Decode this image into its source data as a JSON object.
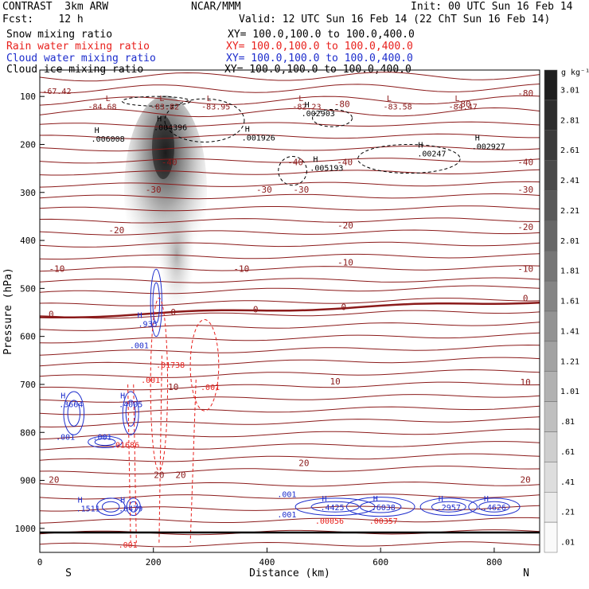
{
  "header": {
    "title_left": "CONTRAST  3km ARW",
    "forecast": "Fcst:    12 h",
    "center": "NCAR/MMM",
    "init": "Init: 00 UTC Sun 16 Feb 14",
    "valid": "Valid: 12 UTC Sun 16 Feb 14 (22 ChT Sun 16 Feb 14)"
  },
  "legend": [
    {
      "name": "Snow mixing ratio",
      "xy": "",
      "color": "#000000"
    },
    {
      "name": "Rain water mixing ratio",
      "xy": "XY= 100.0,100.0 to 100.0,400.0",
      "color": "#e8201c"
    },
    {
      "name": "Cloud water mixing ratio",
      "xy": "XY= 100.0,100.0 to 100.0,400.0",
      "color": "#1c2ccc"
    },
    {
      "name": "Cloud ice mixing ratio",
      "xy": "XY= 100.0,100.0 to 100.0,400.0",
      "color": "#000000"
    }
  ],
  "snow_xy": "XY= 100.0,100.0 to 100.0,400.0",
  "chart_data": {
    "type": "cross-section",
    "xlabel": "Distance (km)",
    "ylabel": "Pressure (hPa)",
    "xlim": [
      0,
      880
    ],
    "ylim": [
      1050,
      45
    ],
    "xticks": [
      "0",
      "200",
      "400",
      "600",
      "800"
    ],
    "yticks": [
      "100",
      "200",
      "300",
      "400",
      "500",
      "600",
      "700",
      "800",
      "900",
      "1000"
    ],
    "xtick_values": [
      0,
      200,
      400,
      600,
      800
    ],
    "ytick_values": [
      100,
      200,
      300,
      400,
      500,
      600,
      700,
      800,
      900,
      1000
    ],
    "left_end": "S",
    "right_end": "N",
    "colorbar": {
      "unit": "g kg⁻¹",
      "labels": [
        "3.01",
        "2.81",
        "2.61",
        "2.41",
        "2.21",
        "2.01",
        "1.81",
        "1.61",
        "1.41",
        "1.21",
        "1.01",
        ".81",
        ".61",
        ".41",
        ".21",
        ".01"
      ]
    },
    "temperature_labels": [
      {
        "text": "-80",
        "x": 532,
        "p": 122
      },
      {
        "text": "-80",
        "x": 745,
        "p": 122
      },
      {
        "text": "-80",
        "x": 855,
        "p": 100
      },
      {
        "text": "-40",
        "x": 228,
        "p": 243
      },
      {
        "text": "-40",
        "x": 450,
        "p": 243
      },
      {
        "text": "-40",
        "x": 537,
        "p": 243
      },
      {
        "text": "-40",
        "x": 855,
        "p": 243
      },
      {
        "text": "-30",
        "x": 200,
        "p": 300
      },
      {
        "text": "-30",
        "x": 395,
        "p": 300
      },
      {
        "text": "-30",
        "x": 460,
        "p": 300
      },
      {
        "text": "-30",
        "x": 855,
        "p": 300
      },
      {
        "text": "-20",
        "x": 135,
        "p": 385
      },
      {
        "text": "-20",
        "x": 538,
        "p": 375
      },
      {
        "text": "-20",
        "x": 855,
        "p": 378
      },
      {
        "text": "-10",
        "x": 30,
        "p": 465
      },
      {
        "text": "-10",
        "x": 355,
        "p": 465
      },
      {
        "text": "-10",
        "x": 538,
        "p": 452
      },
      {
        "text": "-10",
        "x": 855,
        "p": 465
      },
      {
        "text": "0",
        "x": 20,
        "p": 560
      },
      {
        "text": "0",
        "x": 235,
        "p": 556
      },
      {
        "text": "0",
        "x": 380,
        "p": 550
      },
      {
        "text": "0",
        "x": 535,
        "p": 545
      },
      {
        "text": "0",
        "x": 855,
        "p": 527
      },
      {
        "text": "10",
        "x": 235,
        "p": 712
      },
      {
        "text": "10",
        "x": 520,
        "p": 700
      },
      {
        "text": "10",
        "x": 855,
        "p": 702
      },
      {
        "text": "20",
        "x": 25,
        "p": 905
      },
      {
        "text": "20",
        "x": 210,
        "p": 895
      },
      {
        "text": "20",
        "x": 248,
        "p": 895
      },
      {
        "text": "20",
        "x": 465,
        "p": 870
      },
      {
        "text": "20",
        "x": 855,
        "p": 905
      }
    ],
    "low_labels": [
      {
        "text": "-67.42",
        "x": 30,
        "p": 95,
        "hx": 0,
        "hp": 0
      },
      {
        "text": "-84.68",
        "x": 110,
        "p": 127,
        "hx": 120,
        "hp": 110
      },
      {
        "text": "-83.82",
        "x": 220,
        "p": 127,
        "hx": 215,
        "hp": 110
      },
      {
        "text": "-83.95",
        "x": 310,
        "p": 127,
        "hx": 298,
        "hp": 110
      },
      {
        "text": "-82.23",
        "x": 470,
        "p": 127,
        "hx": 460,
        "hp": 110
      },
      {
        "text": "-83.58",
        "x": 630,
        "p": 127,
        "hx": 615,
        "hp": 110
      },
      {
        "text": "-84.47",
        "x": 745,
        "p": 127,
        "hx": 735,
        "hp": 110
      }
    ],
    "ice_maxima": [
      {
        "text": ".006008",
        "x": 120,
        "p": 194
      },
      {
        "text": ".004396",
        "x": 230,
        "p": 170
      },
      {
        "text": ".001926",
        "x": 385,
        "p": 192
      },
      {
        "text": ".002903",
        "x": 490,
        "p": 141
      },
      {
        "text": ".005193",
        "x": 505,
        "p": 255
      },
      {
        "text": ".00247",
        "x": 690,
        "p": 225
      },
      {
        "text": ".002927",
        "x": 790,
        "p": 210
      }
    ],
    "cloud_water_maxima": [
      {
        "text": ".935",
        "x": 190,
        "p": 580
      },
      {
        "text": ".001",
        "x": 175,
        "p": 625
      },
      {
        "text": ".3664",
        "x": 55,
        "p": 747
      },
      {
        "text": ".4005",
        "x": 160,
        "p": 747
      },
      {
        "text": ".001",
        "x": 45,
        "p": 815
      },
      {
        "text": ".001",
        "x": 110,
        "p": 815
      },
      {
        "text": ".1511",
        "x": 85,
        "p": 965
      },
      {
        "text": ".0479",
        "x": 160,
        "p": 965
      },
      {
        "text": ".001",
        "x": 435,
        "p": 935
      },
      {
        "text": ".001",
        "x": 435,
        "p": 977
      },
      {
        "text": ".4425",
        "x": 515,
        "p": 962
      },
      {
        "text": ".6038",
        "x": 605,
        "p": 962
      },
      {
        "text": ".2957",
        "x": 720,
        "p": 962
      },
      {
        "text": ".4626",
        "x": 800,
        "p": 962
      }
    ],
    "rain_maxima": [
      {
        "text": ".01738",
        "x": 230,
        "p": 665
      },
      {
        "text": ".001",
        "x": 195,
        "p": 697
      },
      {
        "text": ".001",
        "x": 300,
        "p": 712
      },
      {
        "text": ".01686",
        "x": 150,
        "p": 832
      },
      {
        "text": ".00056",
        "x": 510,
        "p": 990
      },
      {
        "text": ".00357",
        "x": 605,
        "p": 990
      },
      {
        "text": ".001",
        "x": 155,
        "p": 1040
      }
    ]
  }
}
